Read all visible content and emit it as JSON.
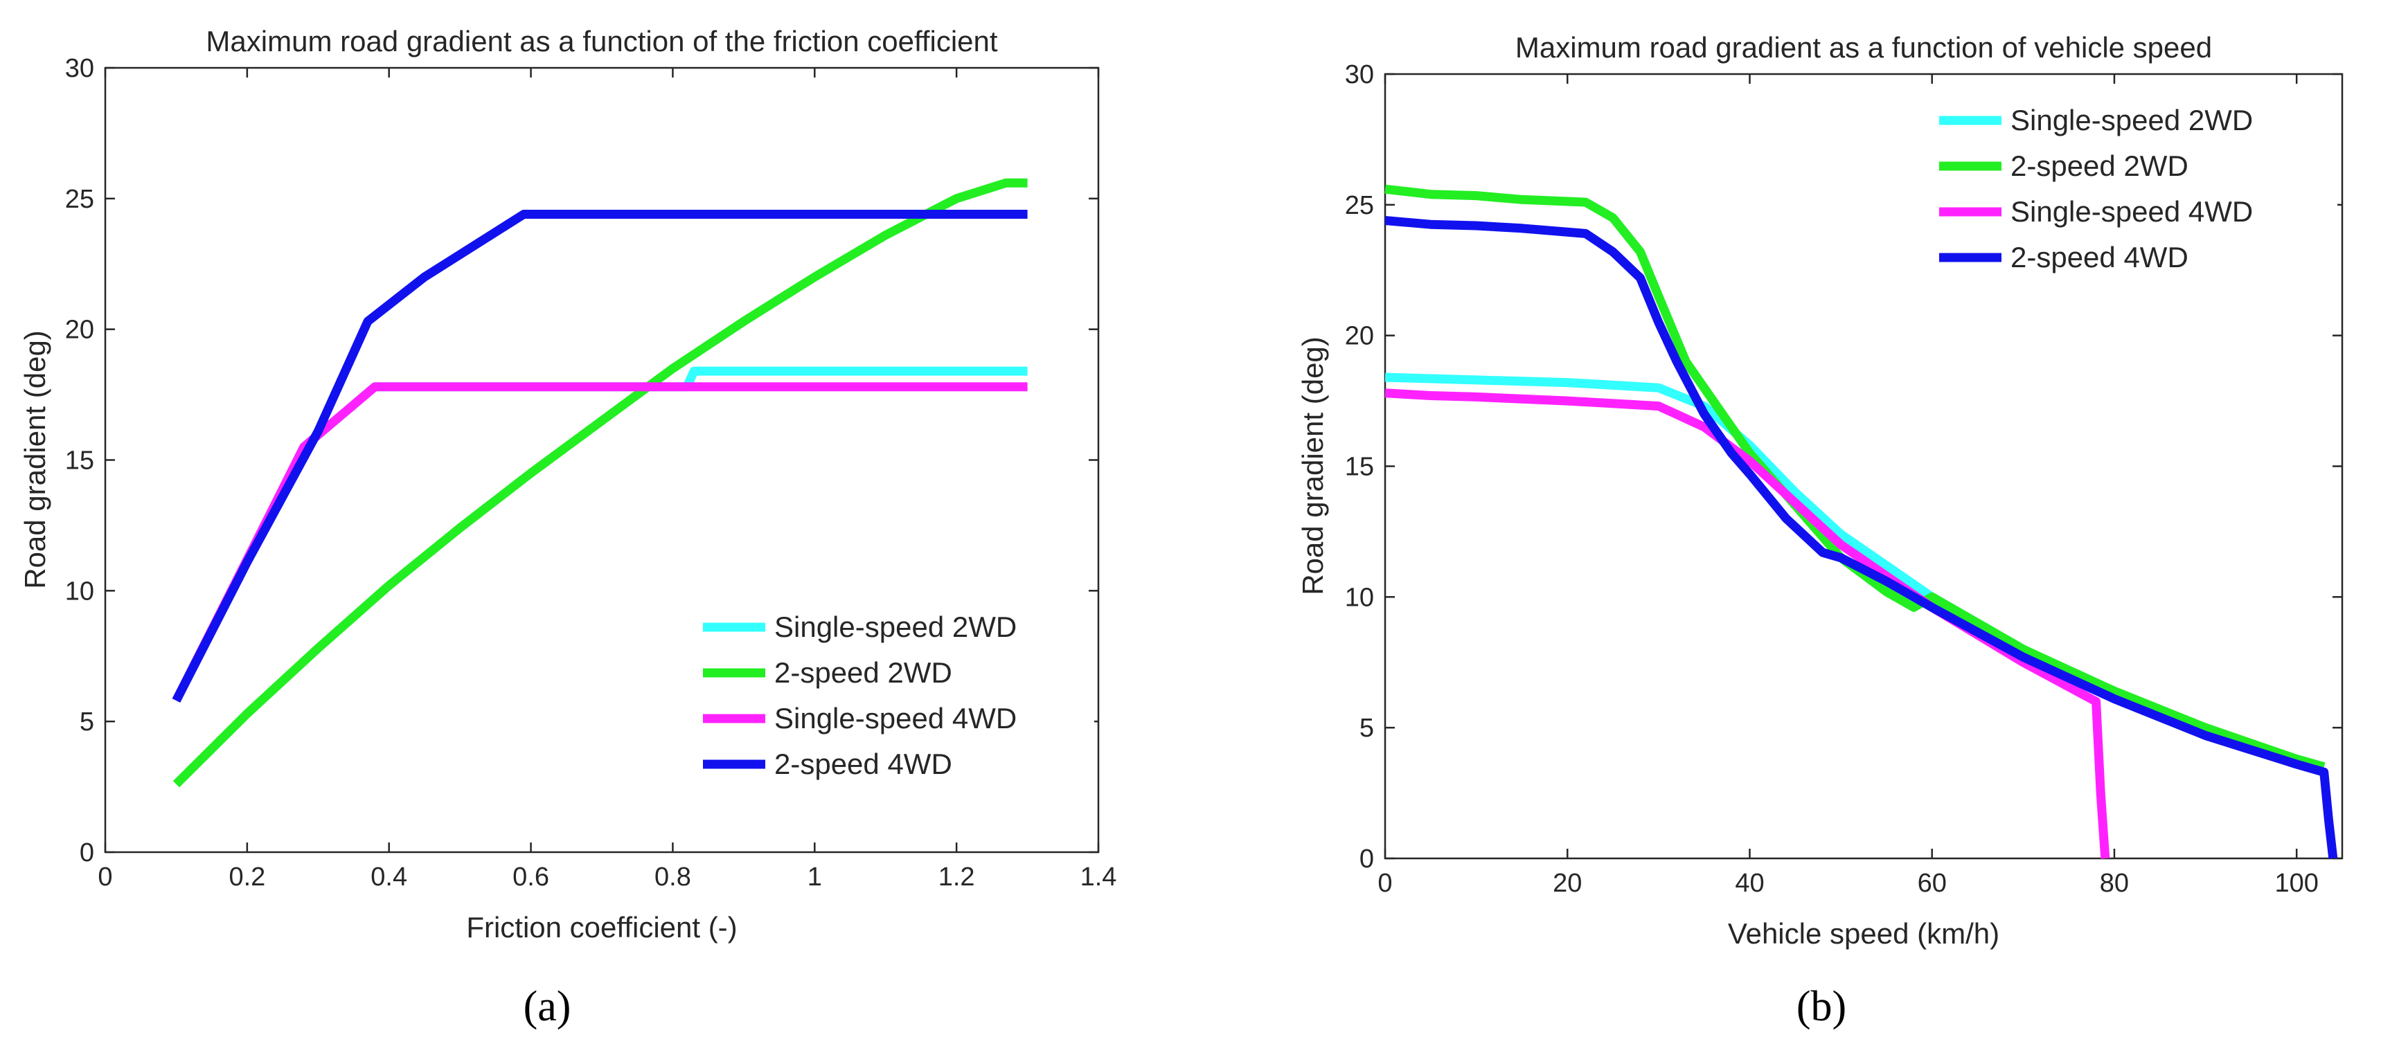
{
  "colors": {
    "single2wd": "#33FFFF",
    "twospeed2wd": "#22EE22",
    "single4wd": "#FF22FF",
    "twospeed4wd": "#1111EE"
  },
  "chart_data": [
    {
      "type": "line",
      "panel_label": "(a)",
      "title": "Maximum road gradient as a function of the friction coefficient",
      "xlabel": "Friction coefficient (-)",
      "ylabel": "Road gradient (deg)",
      "xlim": [
        0,
        1.4
      ],
      "ylim": [
        0,
        30
      ],
      "xticks": [
        0,
        0.2,
        0.4,
        0.6,
        0.8,
        1,
        1.2,
        1.4
      ],
      "xtick_labels": [
        "0",
        "0.2",
        "0.4",
        "0.6",
        "0.8",
        "1",
        "1.2",
        "1.4"
      ],
      "yticks": [
        0,
        5,
        10,
        15,
        20,
        25,
        30
      ],
      "ytick_labels": [
        "0",
        "5",
        "10",
        "15",
        "20",
        "25",
        "30"
      ],
      "grid": false,
      "legend_position": "bottom-right",
      "series": [
        {
          "name": "Single-speed 2WD",
          "color_key": "single2wd",
          "x": [
            0.1,
            0.28,
            0.38,
            0.82,
            0.83,
            1.3
          ],
          "y": [
            5.8,
            15.5,
            17.8,
            17.8,
            18.4,
            18.4
          ]
        },
        {
          "name": "2-speed 2WD",
          "color_key": "twospeed2wd",
          "x": [
            0.1,
            0.2,
            0.3,
            0.4,
            0.5,
            0.6,
            0.7,
            0.8,
            0.9,
            1.0,
            1.1,
            1.2,
            1.27,
            1.3
          ],
          "y": [
            2.6,
            5.3,
            7.8,
            10.2,
            12.4,
            14.5,
            16.5,
            18.5,
            20.3,
            22.0,
            23.6,
            25.0,
            25.6,
            25.6
          ]
        },
        {
          "name": "Single-speed 4WD",
          "color_key": "single4wd",
          "x": [
            0.1,
            0.28,
            0.38,
            1.3
          ],
          "y": [
            5.8,
            15.5,
            17.8,
            17.8
          ]
        },
        {
          "name": "2-speed 4WD",
          "color_key": "twospeed4wd",
          "x": [
            0.1,
            0.2,
            0.3,
            0.37,
            0.45,
            0.59,
            1.3
          ],
          "y": [
            5.8,
            11.1,
            16.1,
            20.3,
            22.0,
            24.4,
            24.4
          ]
        }
      ]
    },
    {
      "type": "line",
      "panel_label": "(b)",
      "title": "Maximum road gradient as a function of vehicle speed",
      "xlabel": "Vehicle speed (km/h)",
      "ylabel": "Road gradient (deg)",
      "xlim": [
        0,
        105
      ],
      "ylim": [
        0,
        30
      ],
      "xticks": [
        0,
        20,
        40,
        60,
        80,
        100
      ],
      "xtick_labels": [
        "0",
        "20",
        "40",
        "60",
        "80",
        "100"
      ],
      "yticks": [
        0,
        5,
        10,
        15,
        20,
        25,
        30
      ],
      "ytick_labels": [
        "0",
        "5",
        "10",
        "15",
        "20",
        "25",
        "30"
      ],
      "grid": false,
      "legend_position": "top-right",
      "series": [
        {
          "name": "Single-speed 2WD",
          "color_key": "single2wd",
          "x": [
            0,
            10,
            20,
            30,
            35,
            40,
            45,
            50,
            55,
            60,
            70,
            80,
            90,
            100,
            103
          ],
          "y": [
            18.4,
            18.3,
            18.2,
            18.0,
            17.3,
            15.8,
            14.0,
            12.4,
            11.2,
            10.0,
            8.0,
            6.3,
            4.9,
            3.8,
            3.5
          ]
        },
        {
          "name": "2-speed 2WD",
          "color_key": "twospeed2wd",
          "x": [
            0,
            5,
            10,
            15,
            22,
            25,
            28,
            30,
            33,
            36,
            40,
            45,
            50,
            55,
            58,
            60,
            70,
            80,
            90,
            100,
            103
          ],
          "y": [
            25.6,
            25.4,
            25.35,
            25.2,
            25.1,
            24.5,
            23.2,
            21.5,
            19.0,
            17.5,
            15.5,
            13.5,
            11.5,
            10.2,
            9.6,
            10.0,
            8.0,
            6.4,
            5.0,
            3.8,
            3.5
          ]
        },
        {
          "name": "Single-speed 4WD",
          "color_key": "single4wd",
          "x": [
            0,
            5,
            10,
            20,
            30,
            35,
            40,
            45,
            50,
            55,
            60,
            70,
            78,
            78.5,
            79
          ],
          "y": [
            17.8,
            17.7,
            17.65,
            17.5,
            17.3,
            16.5,
            15.2,
            13.6,
            12.0,
            10.8,
            9.6,
            7.5,
            6.0,
            2.5,
            0
          ]
        },
        {
          "name": "2-speed 4WD",
          "color_key": "twospeed4wd",
          "x": [
            0,
            5,
            10,
            15,
            22,
            25,
            28,
            30,
            32,
            35,
            38,
            40,
            44,
            48,
            50,
            55,
            60,
            70,
            80,
            90,
            100,
            103,
            103.5,
            104
          ],
          "y": [
            24.4,
            24.25,
            24.2,
            24.1,
            23.9,
            23.2,
            22.2,
            20.5,
            19.0,
            17.0,
            15.5,
            14.7,
            13.0,
            11.7,
            11.5,
            10.6,
            9.6,
            7.7,
            6.1,
            4.7,
            3.6,
            3.3,
            1.5,
            0
          ]
        }
      ]
    }
  ]
}
